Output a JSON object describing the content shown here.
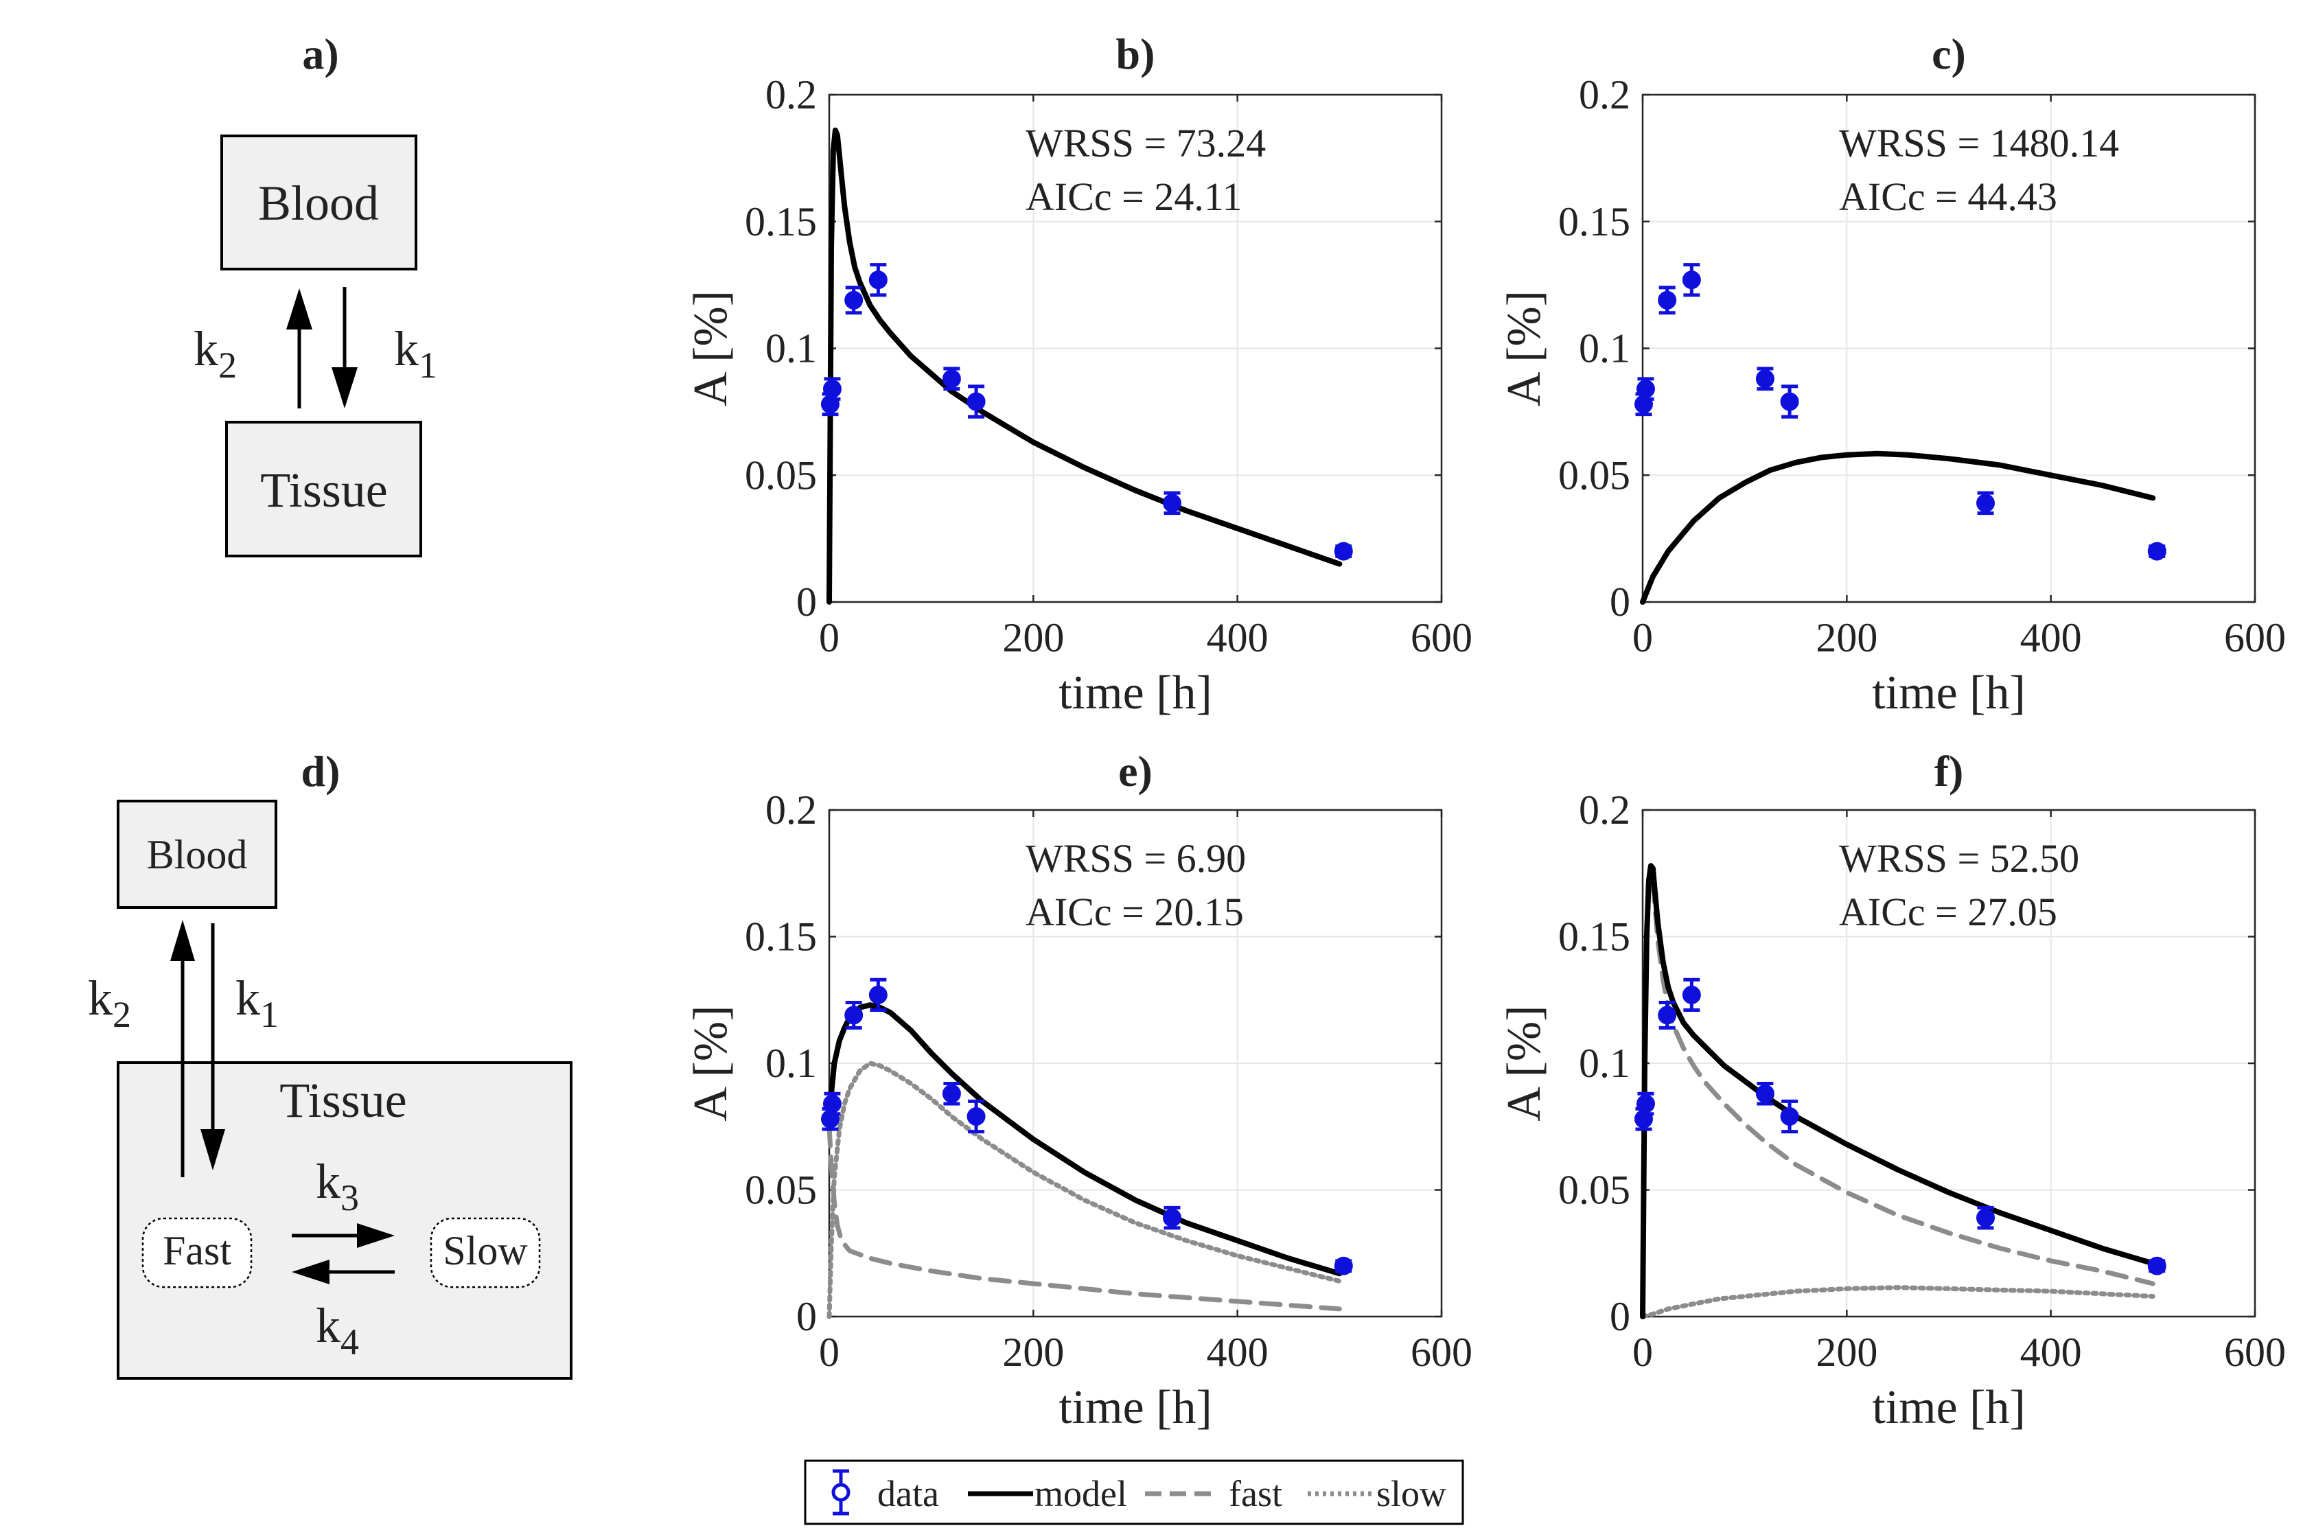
{
  "colors": {
    "data": "#1010dd",
    "model": "#000000",
    "fast": "#8c8c8c",
    "slow": "#8c8c8c",
    "box_fill": "#f0f0f0",
    "grid": "#e6e6e6"
  },
  "diagrams": {
    "a": {
      "label": "a)",
      "blood": "Blood",
      "tissue": "Tissue",
      "k2": "k",
      "k2_sub": "2",
      "k1": "k",
      "k1_sub": "1"
    },
    "d": {
      "label": "d)",
      "blood": "Blood",
      "tissue": "Tissue",
      "fast": "Fast",
      "slow": "Slow",
      "k2": "k",
      "k2_sub": "2",
      "k1": "k",
      "k1_sub": "1",
      "k3": "k",
      "k3_sub": "3",
      "k4": "k",
      "k4_sub": "4"
    }
  },
  "legend": {
    "data": "data",
    "model": "model",
    "fast": "fast",
    "slow": "slow"
  },
  "chart_data": [
    {
      "id": "b",
      "type": "line",
      "title": "b)",
      "xlabel": "time [h]",
      "ylabel": "A [%]",
      "xlim": [
        0,
        600
      ],
      "ylim": [
        0,
        0.2
      ],
      "xticks": [
        0,
        200,
        400,
        600
      ],
      "yticks": [
        0,
        0.05,
        0.1,
        0.15,
        0.2
      ],
      "ytick_labels": [
        "0",
        "0.05",
        "0.1",
        "0.15",
        "0.2"
      ],
      "grid": true,
      "stats": [
        "WRSS = 73.24",
        "AICc = 24.11"
      ],
      "data": [
        {
          "x": 1,
          "y": 0.078,
          "err": 0.004
        },
        {
          "x": 3,
          "y": 0.084,
          "err": 0.004
        },
        {
          "x": 24,
          "y": 0.119,
          "err": 0.005
        },
        {
          "x": 48,
          "y": 0.127,
          "err": 0.006
        },
        {
          "x": 120,
          "y": 0.088,
          "err": 0.004
        },
        {
          "x": 144,
          "y": 0.079,
          "err": 0.006
        },
        {
          "x": 336,
          "y": 0.039,
          "err": 0.004
        },
        {
          "x": 504,
          "y": 0.02,
          "err": 0.002
        }
      ],
      "series": [
        {
          "name": "model",
          "style": "solid",
          "x": [
            0,
            2,
            4,
            6,
            8,
            10,
            12,
            15,
            20,
            25,
            30,
            40,
            50,
            60,
            80,
            100,
            120,
            150,
            200,
            250,
            300,
            350,
            400,
            450,
            500
          ],
          "y": [
            0,
            0.14,
            0.178,
            0.186,
            0.184,
            0.176,
            0.168,
            0.156,
            0.142,
            0.132,
            0.126,
            0.117,
            0.111,
            0.106,
            0.097,
            0.09,
            0.083,
            0.075,
            0.063,
            0.053,
            0.044,
            0.036,
            0.029,
            0.022,
            0.015
          ]
        }
      ]
    },
    {
      "id": "c",
      "type": "line",
      "title": "c)",
      "xlabel": "time [h]",
      "ylabel": "A [%]",
      "xlim": [
        0,
        600
      ],
      "ylim": [
        0,
        0.2
      ],
      "xticks": [
        0,
        200,
        400,
        600
      ],
      "yticks": [
        0,
        0.05,
        0.1,
        0.15,
        0.2
      ],
      "ytick_labels": [
        "0",
        "0.05",
        "0.1",
        "0.15",
        "0.2"
      ],
      "grid": true,
      "stats": [
        "WRSS = 1480.14",
        "AICc = 44.43"
      ],
      "data": [
        {
          "x": 1,
          "y": 0.078,
          "err": 0.004
        },
        {
          "x": 3,
          "y": 0.084,
          "err": 0.004
        },
        {
          "x": 24,
          "y": 0.119,
          "err": 0.005
        },
        {
          "x": 48,
          "y": 0.127,
          "err": 0.006
        },
        {
          "x": 120,
          "y": 0.088,
          "err": 0.004
        },
        {
          "x": 144,
          "y": 0.079,
          "err": 0.006
        },
        {
          "x": 336,
          "y": 0.039,
          "err": 0.004
        },
        {
          "x": 504,
          "y": 0.02,
          "err": 0.002
        }
      ],
      "series": [
        {
          "name": "model",
          "style": "solid",
          "x": [
            0,
            10,
            25,
            50,
            75,
            100,
            125,
            150,
            175,
            200,
            230,
            260,
            300,
            350,
            400,
            450,
            500
          ],
          "y": [
            0,
            0.01,
            0.02,
            0.032,
            0.041,
            0.047,
            0.052,
            0.055,
            0.057,
            0.058,
            0.0585,
            0.058,
            0.0565,
            0.054,
            0.05,
            0.046,
            0.041
          ]
        }
      ]
    },
    {
      "id": "e",
      "type": "line",
      "title": "e)",
      "xlabel": "time [h]",
      "ylabel": "A [%]",
      "xlim": [
        0,
        600
      ],
      "ylim": [
        0,
        0.2
      ],
      "xticks": [
        0,
        200,
        400,
        600
      ],
      "yticks": [
        0,
        0.05,
        0.1,
        0.15,
        0.2
      ],
      "ytick_labels": [
        "0",
        "0.05",
        "0.1",
        "0.15",
        "0.2"
      ],
      "grid": true,
      "stats": [
        "WRSS = 6.90",
        "AICc = 20.15"
      ],
      "data": [
        {
          "x": 1,
          "y": 0.078,
          "err": 0.004
        },
        {
          "x": 3,
          "y": 0.084,
          "err": 0.004
        },
        {
          "x": 24,
          "y": 0.119,
          "err": 0.005
        },
        {
          "x": 48,
          "y": 0.127,
          "err": 0.006
        },
        {
          "x": 120,
          "y": 0.088,
          "err": 0.004
        },
        {
          "x": 144,
          "y": 0.079,
          "err": 0.006
        },
        {
          "x": 336,
          "y": 0.039,
          "err": 0.004
        },
        {
          "x": 504,
          "y": 0.02,
          "err": 0.002
        }
      ],
      "series": [
        {
          "name": "model",
          "style": "solid",
          "x": [
            0,
            2,
            5,
            10,
            15,
            20,
            30,
            40,
            50,
            60,
            80,
            100,
            120,
            150,
            200,
            250,
            300,
            350,
            400,
            450,
            500
          ],
          "y": [
            0.075,
            0.088,
            0.1,
            0.109,
            0.114,
            0.118,
            0.122,
            0.123,
            0.122,
            0.12,
            0.113,
            0.104,
            0.096,
            0.085,
            0.07,
            0.057,
            0.046,
            0.037,
            0.03,
            0.023,
            0.017
          ]
        },
        {
          "name": "fast",
          "style": "dashed",
          "x": [
            0,
            2,
            5,
            8,
            12,
            20,
            40,
            60,
            100,
            150,
            200,
            300,
            400,
            500
          ],
          "y": [
            0.075,
            0.06,
            0.045,
            0.036,
            0.03,
            0.026,
            0.023,
            0.021,
            0.018,
            0.015,
            0.013,
            0.009,
            0.006,
            0.003
          ]
        },
        {
          "name": "slow",
          "style": "dotted",
          "x": [
            0,
            2,
            5,
            10,
            15,
            20,
            30,
            40,
            50,
            60,
            80,
            100,
            120,
            150,
            200,
            250,
            300,
            350,
            400,
            450,
            500
          ],
          "y": [
            0,
            0.028,
            0.055,
            0.074,
            0.084,
            0.09,
            0.097,
            0.1,
            0.099,
            0.097,
            0.092,
            0.086,
            0.079,
            0.07,
            0.057,
            0.046,
            0.037,
            0.03,
            0.024,
            0.019,
            0.014
          ]
        }
      ]
    },
    {
      "id": "f",
      "type": "line",
      "title": "f)",
      "xlabel": "time [h]",
      "ylabel": "A [%]",
      "xlim": [
        0,
        600
      ],
      "ylim": [
        0,
        0.2
      ],
      "xticks": [
        0,
        200,
        400,
        600
      ],
      "yticks": [
        0,
        0.05,
        0.1,
        0.15,
        0.2
      ],
      "ytick_labels": [
        "0",
        "0.05",
        "0.1",
        "0.15",
        "0.2"
      ],
      "grid": true,
      "stats": [
        "WRSS = 52.50",
        "AICc = 27.05"
      ],
      "data": [
        {
          "x": 1,
          "y": 0.078,
          "err": 0.004
        },
        {
          "x": 3,
          "y": 0.084,
          "err": 0.004
        },
        {
          "x": 24,
          "y": 0.119,
          "err": 0.005
        },
        {
          "x": 48,
          "y": 0.127,
          "err": 0.006
        },
        {
          "x": 120,
          "y": 0.088,
          "err": 0.004
        },
        {
          "x": 144,
          "y": 0.079,
          "err": 0.006
        },
        {
          "x": 336,
          "y": 0.039,
          "err": 0.004
        },
        {
          "x": 504,
          "y": 0.02,
          "err": 0.002
        }
      ],
      "series": [
        {
          "name": "model",
          "style": "solid",
          "x": [
            0,
            2,
            4,
            6,
            8,
            10,
            12,
            15,
            20,
            25,
            30,
            40,
            50,
            60,
            80,
            100,
            120,
            150,
            200,
            250,
            300,
            350,
            400,
            450,
            500
          ],
          "y": [
            0,
            0.1,
            0.15,
            0.172,
            0.178,
            0.177,
            0.168,
            0.155,
            0.14,
            0.13,
            0.124,
            0.116,
            0.111,
            0.107,
            0.099,
            0.093,
            0.087,
            0.079,
            0.068,
            0.058,
            0.049,
            0.041,
            0.034,
            0.027,
            0.021
          ]
        },
        {
          "name": "fast",
          "style": "dashed",
          "x": [
            0,
            2,
            4,
            6,
            8,
            10,
            12,
            15,
            20,
            25,
            30,
            40,
            50,
            60,
            80,
            100,
            120,
            150,
            200,
            250,
            300,
            350,
            400,
            450,
            500
          ],
          "y": [
            0,
            0.1,
            0.15,
            0.17,
            0.175,
            0.172,
            0.162,
            0.148,
            0.133,
            0.122,
            0.115,
            0.106,
            0.099,
            0.093,
            0.084,
            0.076,
            0.069,
            0.06,
            0.049,
            0.04,
            0.033,
            0.027,
            0.022,
            0.018,
            0.013
          ]
        },
        {
          "name": "slow",
          "style": "dotted",
          "x": [
            0,
            10,
            25,
            50,
            75,
            100,
            150,
            200,
            250,
            300,
            350,
            400,
            450,
            500
          ],
          "y": [
            0,
            0.001,
            0.003,
            0.005,
            0.007,
            0.008,
            0.01,
            0.011,
            0.0115,
            0.011,
            0.0105,
            0.01,
            0.009,
            0.008
          ]
        }
      ]
    }
  ]
}
